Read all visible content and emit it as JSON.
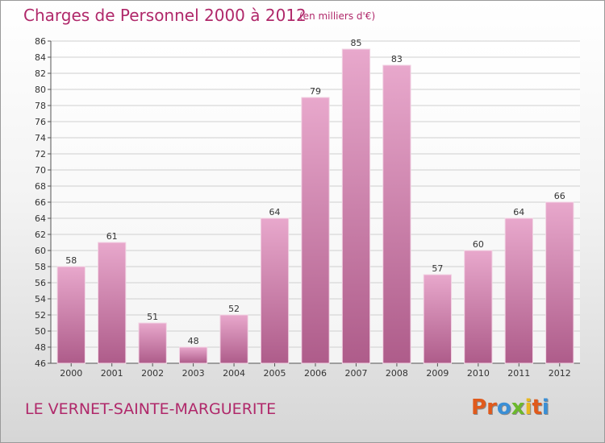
{
  "header": {
    "title": "Charges de Personnel 2000 à 2012",
    "subtitle": "(en milliers d'€)"
  },
  "footer": {
    "commune": "LE VERNET-SAINTE-MARGUERITE",
    "logo_text": "Proxiti"
  },
  "colors": {
    "title": "#b0286a",
    "bar_top": "#e8a8cc",
    "bar_bottom": "#ae5c8a",
    "grid": "#cfcfcf",
    "logo": [
      "#e05a1c",
      "#e05a1c",
      "#3a8fd6",
      "#6cb82c",
      "#e8b820",
      "#e05a1c",
      "#3a8fd6"
    ]
  },
  "chart_data": {
    "type": "bar",
    "title": "Charges de Personnel 2000 à 2012",
    "subtitle": "(en milliers d'€)",
    "categories": [
      "2000",
      "2001",
      "2002",
      "2003",
      "2004",
      "2005",
      "2006",
      "2007",
      "2008",
      "2009",
      "2010",
      "2011",
      "2012"
    ],
    "values": [
      58,
      61,
      51,
      48,
      52,
      64,
      79,
      85,
      83,
      57,
      60,
      64,
      66
    ],
    "ylim": [
      46,
      86
    ],
    "yticks": [
      46,
      48,
      50,
      52,
      54,
      56,
      58,
      60,
      62,
      64,
      66,
      68,
      70,
      72,
      74,
      76,
      78,
      80,
      82,
      84,
      86
    ],
    "grid": true,
    "xlabel": "",
    "ylabel": ""
  }
}
